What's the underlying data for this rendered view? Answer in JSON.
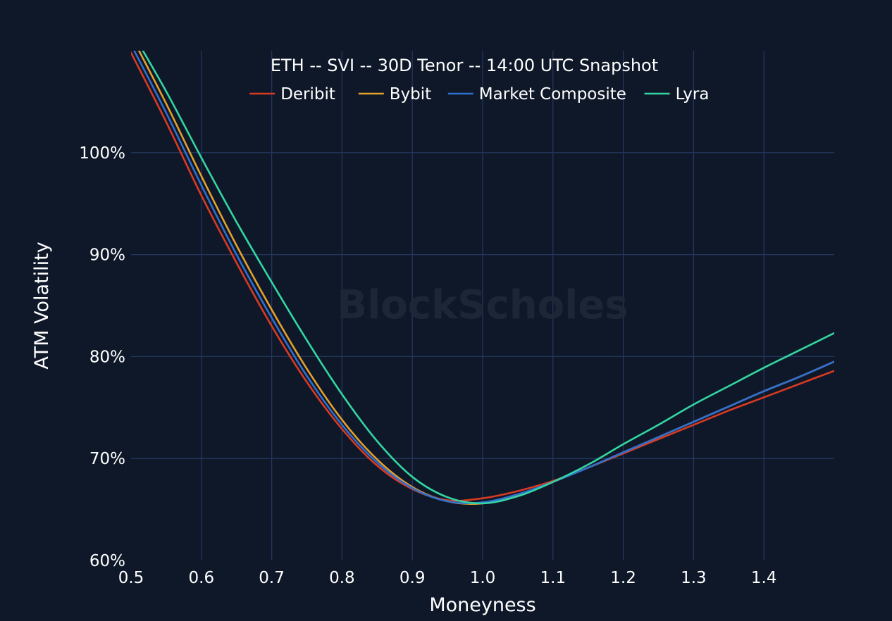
{
  "chart_data": {
    "type": "line",
    "title": "ETH -- SVI -- 30D Tenor -- 14:00 UTC Snapshot",
    "xlabel": "Moneyness",
    "ylabel": "ATM Volatility",
    "watermark": "BlockScholes",
    "xlim": [
      0.5,
      1.5
    ],
    "ylim": [
      60,
      110
    ],
    "x_ticks": [
      0.5,
      0.6,
      0.7,
      0.8,
      0.9,
      1.0,
      1.1,
      1.2,
      1.3,
      1.4
    ],
    "x_tick_labels": [
      "0.5",
      "0.6",
      "0.7",
      "0.8",
      "0.9",
      "1.0",
      "1.1",
      "1.2",
      "1.3",
      "1.4"
    ],
    "y_ticks": [
      60,
      70,
      80,
      90,
      100
    ],
    "y_tick_labels": [
      "60%",
      "70%",
      "80%",
      "90%",
      "100%"
    ],
    "grid": true,
    "legend_position": "top-center",
    "background": "#0f1829",
    "grid_color": "#24365e",
    "text_color": "#ffffff",
    "series": [
      {
        "name": "Deribit",
        "color": "#d93a22",
        "x": [
          0.5,
          0.55,
          0.6,
          0.65,
          0.7,
          0.75,
          0.8,
          0.85,
          0.9,
          0.95,
          1.0,
          1.05,
          1.1,
          1.15,
          1.2,
          1.25,
          1.3,
          1.35,
          1.4,
          1.45,
          1.5
        ],
        "y": [
          109.8,
          103.0,
          95.8,
          89.2,
          83.0,
          77.5,
          72.9,
          69.3,
          67.0,
          65.9,
          66.1,
          66.8,
          67.8,
          69.1,
          70.5,
          71.9,
          73.3,
          74.7,
          76.0,
          77.3,
          78.6
        ]
      },
      {
        "name": "Bybit",
        "color": "#e3a12b",
        "x": [
          0.5,
          0.55,
          0.6,
          0.65,
          0.7,
          0.75,
          0.8,
          0.85,
          0.9,
          0.95,
          1.0,
          1.05,
          1.1,
          1.15,
          1.2,
          1.25,
          1.3,
          1.35,
          1.4,
          1.45,
          1.5
        ],
        "y": [
          111.5,
          104.8,
          97.7,
          90.9,
          84.6,
          78.8,
          73.8,
          69.9,
          67.2,
          65.8,
          65.6,
          66.4,
          67.7,
          69.1,
          70.6,
          72.1,
          73.6,
          75.1,
          76.6,
          78.0,
          79.5
        ]
      },
      {
        "name": "Market Composite",
        "color": "#2f6fd0",
        "x": [
          0.5,
          0.55,
          0.6,
          0.65,
          0.7,
          0.75,
          0.8,
          0.85,
          0.9,
          0.95,
          1.0,
          1.05,
          1.1,
          1.15,
          1.2,
          1.25,
          1.3,
          1.35,
          1.4,
          1.45,
          1.5
        ],
        "y": [
          110.6,
          103.9,
          96.8,
          90.0,
          83.8,
          78.1,
          73.3,
          69.6,
          67.1,
          65.8,
          65.7,
          66.5,
          67.7,
          69.1,
          70.6,
          72.1,
          73.6,
          75.1,
          76.6,
          78.0,
          79.5
        ]
      },
      {
        "name": "Lyra",
        "color": "#33d6a2",
        "x": [
          0.5,
          0.55,
          0.6,
          0.65,
          0.7,
          0.75,
          0.8,
          0.85,
          0.9,
          0.95,
          1.0,
          1.05,
          1.1,
          1.15,
          1.2,
          1.25,
          1.3,
          1.35,
          1.4,
          1.45,
          1.5
        ],
        "y": [
          112.0,
          106.0,
          99.5,
          93.2,
          87.3,
          81.6,
          76.3,
          71.7,
          68.2,
          66.2,
          65.6,
          66.3,
          67.7,
          69.4,
          71.4,
          73.3,
          75.3,
          77.1,
          78.9,
          80.6,
          82.3
        ]
      }
    ]
  }
}
